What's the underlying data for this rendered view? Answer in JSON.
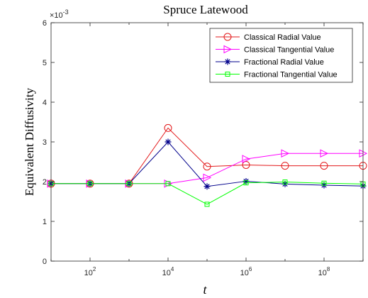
{
  "chart_data": {
    "type": "line",
    "title": "Spruce Latewood",
    "xlabel": "t",
    "ylabel": "Equivalent Diffusivity",
    "x_scale": "log",
    "xlim": [
      10,
      1000000000
    ],
    "ylim": [
      0,
      0.006
    ],
    "y_multiplier_label": {
      "base": "×10",
      "exponent": "-3"
    },
    "x_ticks": [
      {
        "value": 100,
        "base": "10",
        "exp": "2"
      },
      {
        "value": 10000,
        "base": "10",
        "exp": "4"
      },
      {
        "value": 1000000,
        "base": "10",
        "exp": "6"
      },
      {
        "value": 100000000,
        "base": "10",
        "exp": "8"
      }
    ],
    "y_ticks": [
      {
        "value": 0,
        "label": "0"
      },
      {
        "value": 0.001,
        "label": "1"
      },
      {
        "value": 0.002,
        "label": "2"
      },
      {
        "value": 0.003,
        "label": "3"
      },
      {
        "value": 0.004,
        "label": "4"
      },
      {
        "value": 0.005,
        "label": "5"
      },
      {
        "value": 0.006,
        "label": "6"
      }
    ],
    "grid": false,
    "legend_position": "top-right",
    "x": [
      10,
      100,
      1000,
      10000,
      100000,
      1000000,
      10000000,
      100000000,
      1000000000
    ],
    "series": [
      {
        "name": "Classical Radial Value",
        "color": "#e31a1c",
        "marker": "circle",
        "values": [
          0.00195,
          0.00195,
          0.00195,
          0.00335,
          0.00238,
          0.00242,
          0.0024,
          0.0024,
          0.0024
        ]
      },
      {
        "name": "Classical Tangential Value",
        "color": "#ff00ff",
        "marker": "triangle-right",
        "values": [
          0.00195,
          0.00195,
          0.00195,
          0.00195,
          0.0021,
          0.00257,
          0.00271,
          0.00271,
          0.00271
        ]
      },
      {
        "name": "Fractional Radial Value",
        "color": "#00008b",
        "marker": "asterisk",
        "values": [
          0.00195,
          0.00195,
          0.00195,
          0.003,
          0.00188,
          0.00201,
          0.00194,
          0.00191,
          0.00189
        ]
      },
      {
        "name": "Fractional Tangential Value",
        "color": "#00ff00",
        "marker": "square",
        "values": [
          0.00195,
          0.00195,
          0.00195,
          0.00195,
          0.00143,
          0.00197,
          0.00199,
          0.00196,
          0.00194
        ]
      }
    ]
  }
}
